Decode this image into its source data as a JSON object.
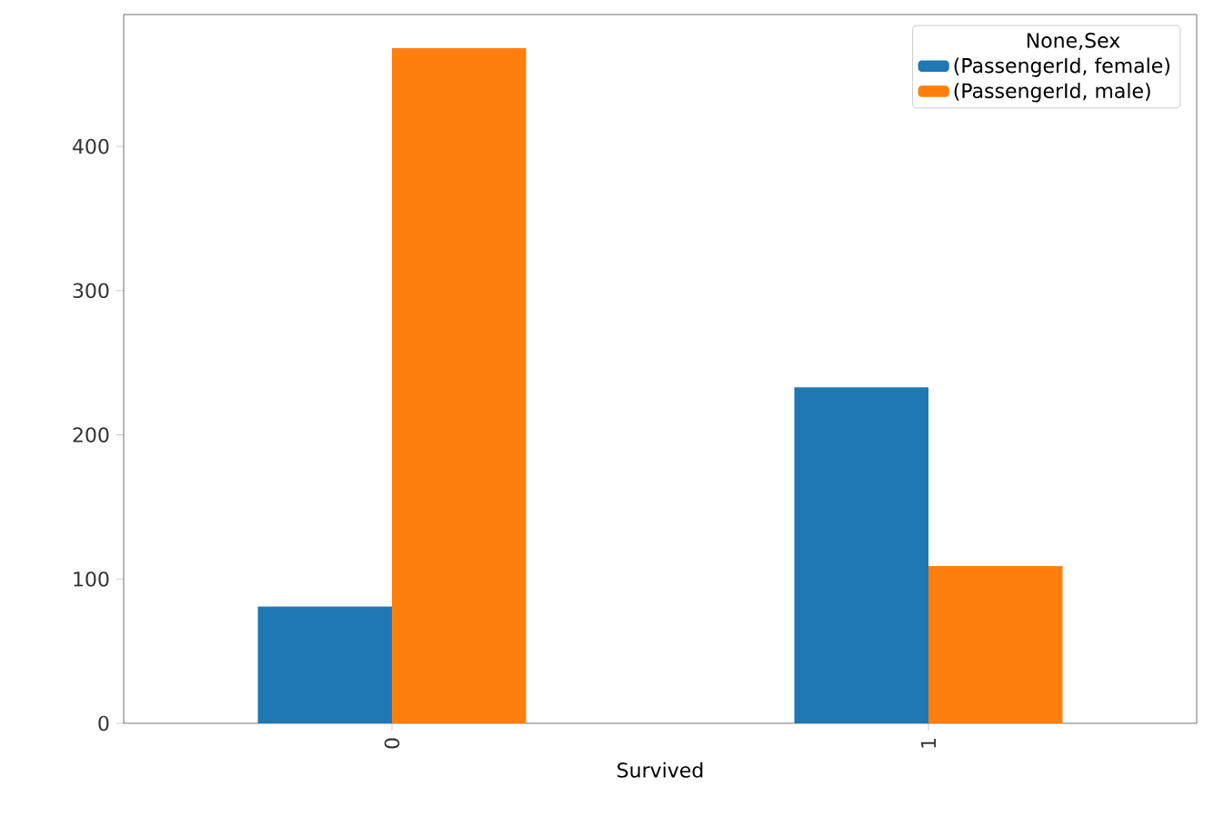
{
  "chart_data": {
    "type": "bar",
    "xlabel": "Survived",
    "legend_title": "None,Sex",
    "categories": [
      "0",
      "1"
    ],
    "series": [
      {
        "name": "(PassengerId, female)",
        "color": "#1f77b4",
        "values": [
          81,
          233
        ]
      },
      {
        "name": "(PassengerId, male)",
        "color": "#ff7f0e",
        "values": [
          468,
          109
        ]
      }
    ],
    "ylim": [
      0,
      491.4
    ],
    "yticks": [
      0,
      100,
      200,
      300,
      400
    ],
    "grid": false,
    "legend": "top right"
  }
}
